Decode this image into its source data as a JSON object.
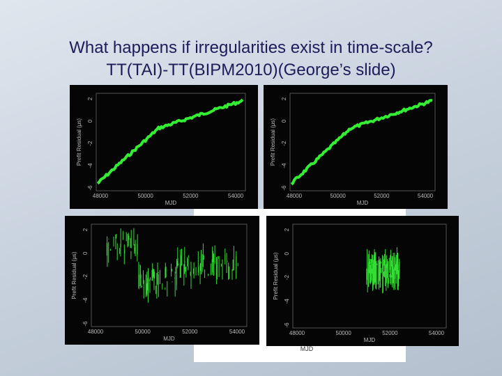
{
  "title": {
    "line1": "What happens if irregularities exist in time-scale?",
    "line2": "TT(TAI)-TT(BIPM2010)(George’s slide)"
  },
  "plots": [
    {
      "y_label": "Prefit Residual (μs)",
      "x_label": "MJD",
      "yticks": [
        "2",
        "0",
        "-2",
        "-4",
        "-6"
      ],
      "xticks": [
        "48000",
        "50000",
        "52000",
        "54000"
      ]
    },
    {
      "y_label": "Prefit Residual (μs)",
      "x_label": "MJD",
      "yticks": [
        "2",
        "0",
        "-2",
        "-4",
        "-6"
      ],
      "xticks": [
        "48000",
        "50000",
        "52000",
        "54000"
      ]
    },
    {
      "y_label": "Prefit Residual (μs)",
      "x_label": "MJD",
      "yticks": [
        "2",
        "0",
        "-2",
        "-4",
        "-6"
      ],
      "xticks": [
        "48000",
        "50000",
        "52000",
        "54000"
      ]
    },
    {
      "y_label": "Prefit Residual (μs)",
      "x_label": "MJD",
      "yticks": [
        "2",
        "0",
        "-2",
        "-4",
        "-6"
      ],
      "xticks": [
        "48000",
        "50000",
        "52000",
        "54000"
      ]
    }
  ],
  "backdrop_label": "MJD"
}
